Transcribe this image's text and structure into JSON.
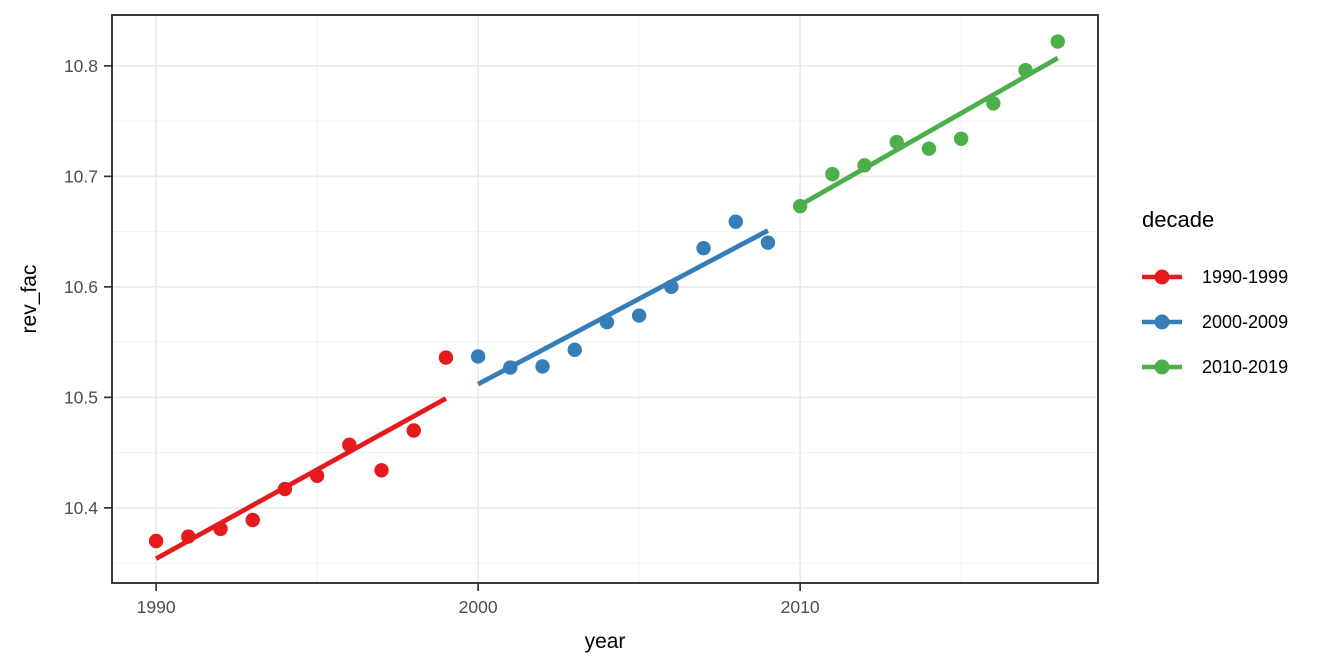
{
  "chart_data": {
    "type": "scatter",
    "title": "",
    "xlabel": "year",
    "ylabel": "rev_fac",
    "xlim": [
      1988.63,
      2019.25
    ],
    "ylim": [
      10.332,
      10.846
    ],
    "grid": "on",
    "x_ticks": {
      "values": [
        1990,
        2000,
        2010
      ],
      "labels": [
        "1990",
        "2000",
        "2010"
      ]
    },
    "y_ticks": {
      "values": [
        10.4,
        10.5,
        10.6,
        10.7,
        10.8
      ],
      "labels": [
        "10.4",
        "10.5",
        "10.6",
        "10.7",
        "10.8"
      ]
    },
    "x_minor_gridlines": [
      1995,
      2005,
      2015
    ],
    "y_minor_gridlines": [
      10.35,
      10.45,
      10.55,
      10.65,
      10.75
    ],
    "legend": {
      "title": "decade",
      "position": "right"
    },
    "series": [
      {
        "name": "1990-1999",
        "color": "#E41A1C",
        "x": [
          1990,
          1991,
          1992,
          1993,
          1994,
          1995,
          1996,
          1997,
          1998,
          1999
        ],
        "y": [
          10.37,
          10.374,
          10.381,
          10.389,
          10.417,
          10.429,
          10.457,
          10.434,
          10.47,
          10.536
        ],
        "trend": {
          "x": [
            1990,
            1999
          ],
          "y": [
            10.354,
            10.499
          ]
        }
      },
      {
        "name": "2000-2009",
        "color": "#377EB8",
        "x": [
          2000,
          2001,
          2002,
          2003,
          2004,
          2005,
          2006,
          2007,
          2008,
          2009
        ],
        "y": [
          10.537,
          10.527,
          10.528,
          10.543,
          10.568,
          10.574,
          10.6,
          10.635,
          10.659,
          10.64
        ],
        "trend": {
          "x": [
            2000,
            2009
          ],
          "y": [
            10.512,
            10.651
          ]
        }
      },
      {
        "name": "2010-2019",
        "color": "#4DAF4A",
        "x": [
          2010,
          2011,
          2012,
          2013,
          2014,
          2015,
          2016,
          2017,
          2018
        ],
        "y": [
          10.673,
          10.702,
          10.71,
          10.731,
          10.725,
          10.734,
          10.766,
          10.796,
          10.822
        ],
        "trend": {
          "x": [
            2010,
            2018
          ],
          "y": [
            10.674,
            10.807
          ]
        }
      }
    ],
    "style": {
      "background": "#FFFFFF",
      "panel_background": "#FFFFFF",
      "panel_border": "#3B3B3B",
      "grid_major": "#E9E9E9",
      "grid_minor": "#F3F3F3",
      "tick_mark": "#333333",
      "tick_label_color": "#4D4D4D",
      "axis_title_color": "#000000",
      "point_radius": 7.2,
      "trend_width": 4.8
    }
  }
}
